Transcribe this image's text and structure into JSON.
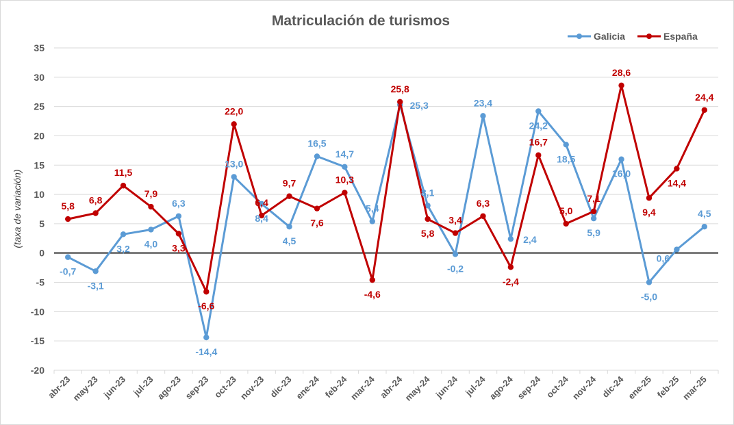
{
  "chart_data": {
    "type": "line",
    "title": "Matriculación de turismos",
    "ylabel": "(taxa de variación)",
    "xlabel": "",
    "ylim": [
      -20,
      35
    ],
    "yticks": [
      35,
      30,
      25,
      20,
      15,
      10,
      5,
      0,
      -5,
      -10,
      -15,
      -20
    ],
    "grid": true,
    "legend_position": "top-right",
    "categories": [
      "abr-23",
      "may-23",
      "jun-23",
      "jul-23",
      "ago-23",
      "sep-23",
      "oct-23",
      "nov-23",
      "dic-23",
      "ene-24",
      "feb-24",
      "mar-24",
      "abr-24",
      "may-24",
      "jun-24",
      "jul-24",
      "ago-24",
      "sep-24",
      "oct-24",
      "nov-24",
      "dic-24",
      "ene-25",
      "feb-25",
      "mar-25"
    ],
    "series": [
      {
        "name": "Galicia",
        "color": "#5b9bd5",
        "values": [
          -0.7,
          -3.1,
          3.2,
          4.0,
          6.3,
          -14.4,
          13.0,
          8.4,
          4.5,
          16.5,
          14.7,
          5.4,
          25.3,
          8.1,
          -0.2,
          23.4,
          2.4,
          24.2,
          18.5,
          5.9,
          16.0,
          -5.0,
          0.6,
          4.5
        ],
        "labels": [
          "-0,7",
          "-3,1",
          "3,2",
          "4,0",
          "6,3",
          "-14,4",
          "13,0",
          "8,4",
          "4,5",
          "16,5",
          "14,7",
          "5,4",
          "25,3",
          "8,1",
          "-0,2",
          "23,4",
          "2,4",
          "24,2",
          "18,5",
          "5,9",
          "16,0",
          "-5,0",
          "0,6",
          "4,5"
        ]
      },
      {
        "name": "España",
        "color": "#c00000",
        "values": [
          5.8,
          6.8,
          11.5,
          7.9,
          3.3,
          -6.6,
          22.0,
          6.4,
          9.7,
          7.6,
          10.3,
          -4.6,
          25.8,
          5.8,
          3.4,
          6.3,
          -2.4,
          16.7,
          5.0,
          7.1,
          28.6,
          9.4,
          14.4,
          24.4
        ],
        "labels": [
          "5,8",
          "6,8",
          "11,5",
          "7,9",
          "3,3",
          "-6,6",
          "22,0",
          "6,4",
          "9,7",
          "7,6",
          "10,3",
          "-4,6",
          "25,8",
          "5,8",
          "3,4",
          "6,3",
          "-2,4",
          "16,7",
          "5,0",
          "7,1",
          "28,6",
          "9,4",
          "14,4",
          "24,4"
        ]
      }
    ]
  }
}
